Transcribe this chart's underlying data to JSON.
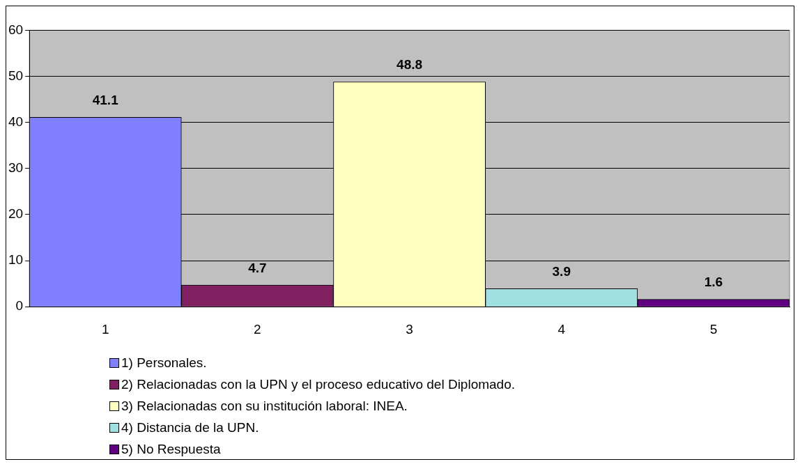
{
  "chart_data": {
    "type": "bar",
    "categories": [
      "1",
      "2",
      "3",
      "4",
      "5"
    ],
    "stacked": true,
    "series": [
      {
        "name": "1) Personales.",
        "color": "#8080ff",
        "values": [
          41.1,
          null,
          null,
          null,
          null
        ]
      },
      {
        "name": "2) Relacionadas con la UPN y el proceso educativo del Diplomado.",
        "color": "#802060",
        "values": [
          null,
          4.7,
          null,
          null,
          null
        ]
      },
      {
        "name": "3) Relacionadas  con su institución laboral: INEA.",
        "color": "#ffffc0",
        "values": [
          null,
          null,
          48.8,
          null,
          null
        ]
      },
      {
        "name": "4) Distancia de la UPN.",
        "color": "#a0e0e0",
        "values": [
          null,
          null,
          null,
          3.9,
          null
        ]
      },
      {
        "name": "5) No Respuesta",
        "color": "#600080",
        "values": [
          null,
          null,
          null,
          null,
          1.6
        ]
      }
    ],
    "ylim": [
      0,
      60
    ],
    "yticks": [
      0,
      10,
      20,
      30,
      40,
      50,
      60
    ],
    "grid": "y",
    "legend": "bottom left",
    "data_labels": true
  }
}
